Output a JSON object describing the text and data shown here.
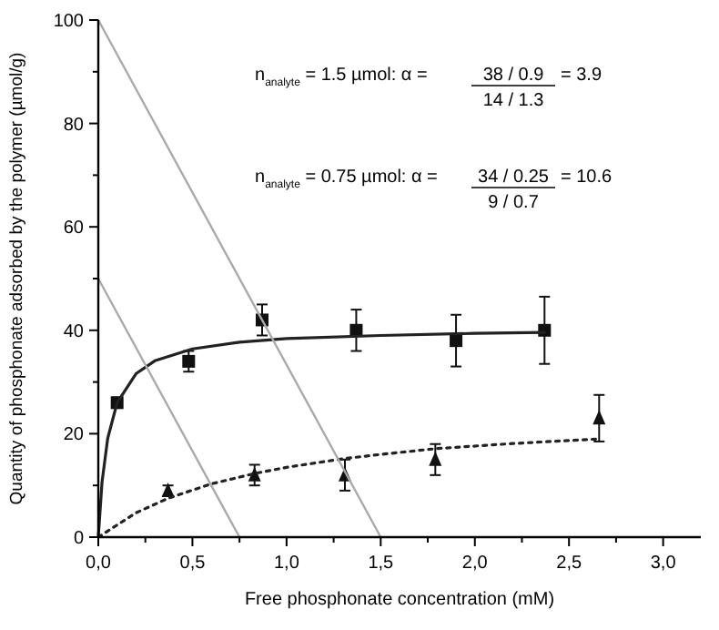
{
  "chart_data": {
    "type": "scatter",
    "xlabel": "Free phosphonate concentration (mM)",
    "ylabel": "Quantity of phosphonate adsorbed by the polymer (µmol/g)",
    "xlim": [
      0,
      3.2
    ],
    "xticks": [
      {
        "value": 0,
        "label": "0,0"
      },
      {
        "value": 0.5,
        "label": "0,5"
      },
      {
        "value": 1,
        "label": "1,0"
      },
      {
        "value": 1.5,
        "label": "1,5"
      },
      {
        "value": 2,
        "label": "2,0"
      },
      {
        "value": 2.5,
        "label": "2,5"
      },
      {
        "value": 3,
        "label": "3,0"
      }
    ],
    "ylim": [
      0,
      100
    ],
    "yticks": [
      0,
      20,
      40,
      60,
      80,
      100
    ],
    "grid": false,
    "annotations": [
      "n$_{analyte}$ = 1.5 µmol:  α =",
      "38 / 0.9",
      "= 3.9",
      "14 / 1.3",
      "n$_{analyte}$ = 0.75 µmol:  α =",
      "34 / 0.25",
      "= 10.6",
      "9 / 0.7"
    ],
    "series": [
      {
        "color": "#111111",
        "marker": "square",
        "x": [
          0.1,
          0.48,
          0.87,
          1.37,
          1.9,
          2.37
        ],
        "values": [
          26,
          34,
          42,
          40,
          38,
          40
        ],
        "errors": [
          1,
          2,
          3,
          4,
          5,
          6.5
        ]
      },
      {
        "color": "#111111",
        "marker": "triangle",
        "x": [
          0.37,
          0.83,
          1.31,
          1.79,
          2.66
        ],
        "values": [
          9,
          12,
          12,
          15,
          23
        ],
        "errors": [
          1,
          2,
          3,
          3,
          4.5
        ]
      },
      {
        "type": "line",
        "color": "#222222",
        "line_style": "solid",
        "x": [
          0,
          0.02,
          0.05,
          0.1,
          0.2,
          0.3,
          0.5,
          0.75,
          1,
          1.5,
          2,
          2.37
        ],
        "values": [
          0,
          10.7,
          19.1,
          26,
          31.6,
          34.1,
          36.4,
          37.7,
          38.4,
          39,
          39.4,
          39.6
        ]
      },
      {
        "type": "line",
        "color": "#222222",
        "line_style": "dotted",
        "x": [
          0,
          0.2,
          0.37,
          0.6,
          0.83,
          1,
          1.31,
          1.5,
          1.79,
          2.2,
          2.66
        ],
        "values": [
          0,
          4.7,
          7.5,
          10.3,
          12.3,
          13.5,
          15.2,
          16,
          17.1,
          18.1,
          19
        ]
      },
      {
        "type": "line",
        "color": "#aaaaaa",
        "line_style": "solid",
        "x": [
          0,
          1.5
        ],
        "values": [
          100,
          0
        ]
      },
      {
        "type": "line",
        "color": "#aaaaaa",
        "line_style": "solid",
        "x": [
          0,
          0.75
        ],
        "values": [
          50,
          0
        ]
      }
    ]
  }
}
